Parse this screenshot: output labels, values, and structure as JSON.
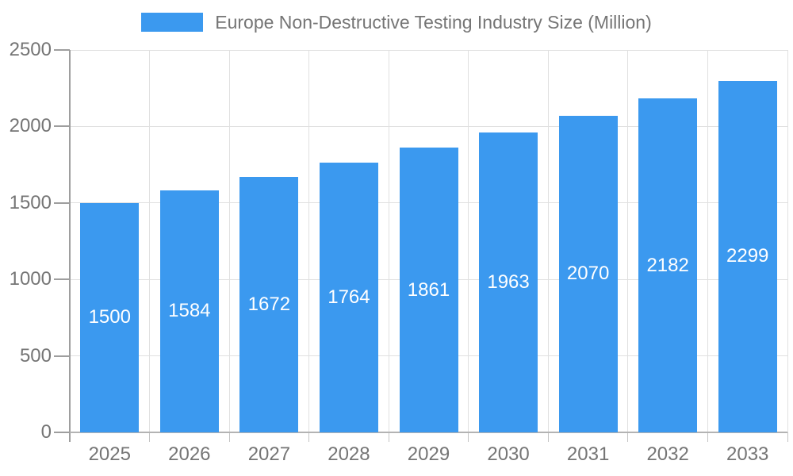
{
  "chart_data": {
    "type": "bar",
    "title": "Europe Non-Destructive Testing Industry Size (Million)",
    "legend": {
      "position": "top",
      "entries": [
        "Europe Non-Destructive Testing Industry Size (Million)"
      ]
    },
    "categories": [
      "2025",
      "2026",
      "2027",
      "2028",
      "2029",
      "2030",
      "2031",
      "2032",
      "2033"
    ],
    "series": [
      {
        "name": "Europe Non-Destructive Testing Industry Size (Million)",
        "values": [
          1500,
          1584,
          1672,
          1764,
          1861,
          1963,
          2070,
          2182,
          2299
        ]
      }
    ],
    "bar_labels": [
      "1500",
      "1584",
      "1672",
      "1764",
      "1861",
      "1963",
      "2070",
      "2182",
      "2299"
    ],
    "bar_labels_position": "inside-center",
    "xlabel": "",
    "ylabel": "",
    "ylim": [
      0,
      2500
    ],
    "yticks": [
      0,
      500,
      1000,
      1500,
      2000,
      2500
    ],
    "grid": true,
    "colors": {
      "bar": "#3B99EF",
      "bar_label": "#FFFFFF",
      "axis_label": "#757575",
      "legend_text": "#757575",
      "gridline": "#E0E0E0",
      "y_axis_line": "#9E9E9E",
      "baseline": "#B3B3B3",
      "tick": "#C4C4C4",
      "background": "#FFFFFF"
    }
  }
}
